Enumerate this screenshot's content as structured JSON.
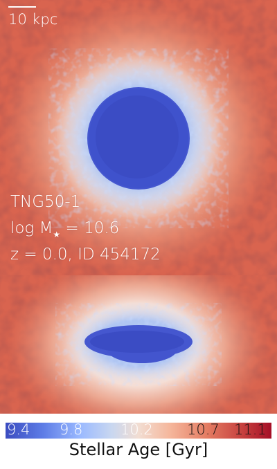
{
  "scalebar": {
    "label": "10 kpc"
  },
  "galaxy": {
    "simulation": "TNG50-1",
    "mass_prefix": "log M",
    "mass_star": "★",
    "mass_suffix": " = 10.6",
    "meta": "z = 0.0, ID 454172"
  },
  "colorbar": {
    "ticks": [
      "9.4",
      "9.8",
      "10.2",
      "10.7",
      "11.1"
    ],
    "title": "Stellar Age [Gyr]"
  },
  "colors": {
    "young_core": "#4557cf",
    "old_background": "#cf4b4b",
    "mid_ring": "#f2e4e0"
  }
}
